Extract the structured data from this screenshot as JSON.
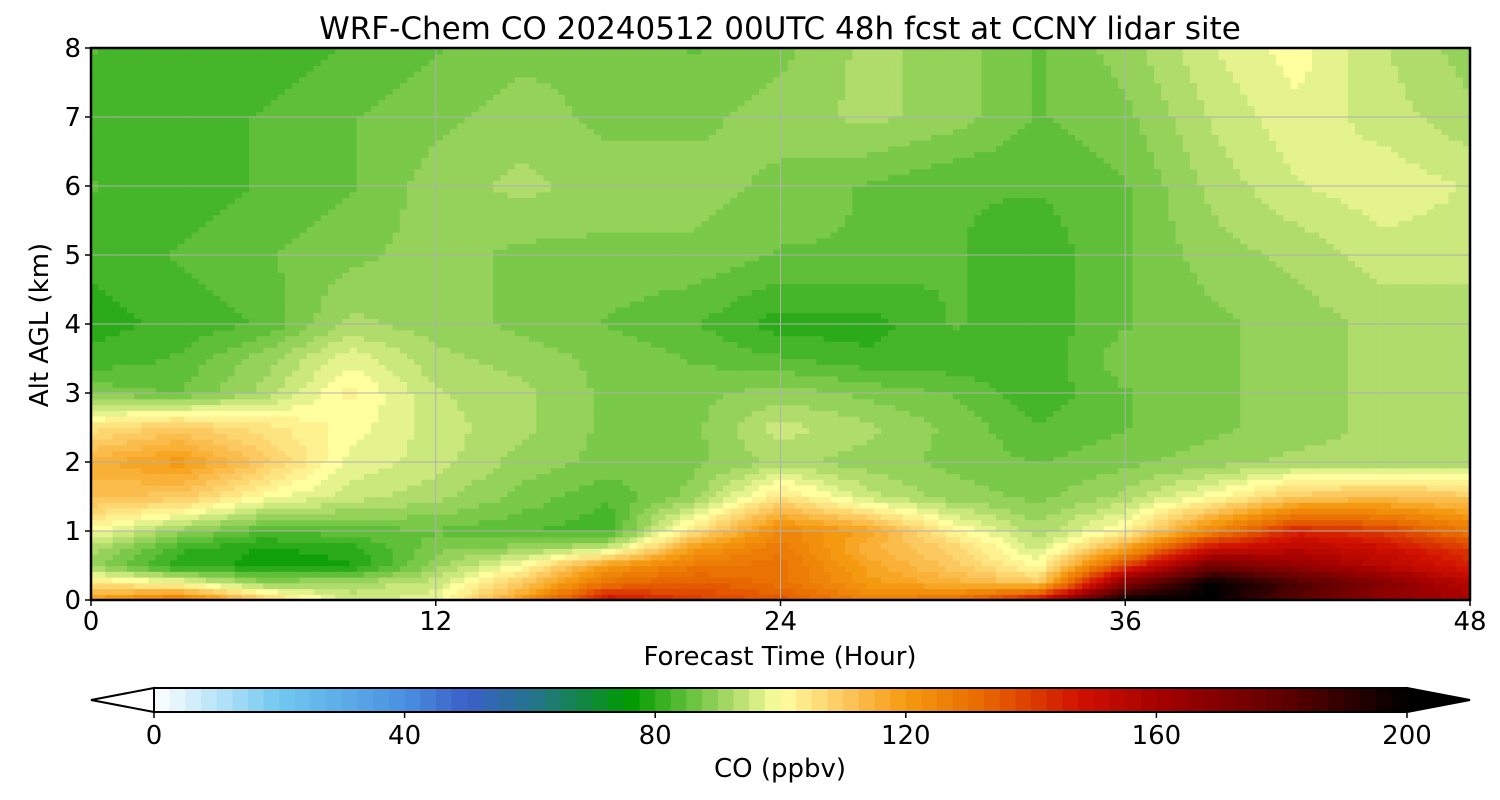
{
  "chart_data": {
    "type": "heatmap",
    "title": "WRF-Chem CO  20240512 00UTC 48h fcst at CCNY lidar site",
    "xlabel": "Forecast Time (Hour)",
    "ylabel": "Alt AGL (km)",
    "xlim": [
      0,
      48
    ],
    "ylim": [
      0,
      8
    ],
    "x_ticks": [
      "0",
      "12",
      "24",
      "36",
      "48"
    ],
    "y_ticks": [
      "0",
      "1",
      "2",
      "3",
      "4",
      "5",
      "6",
      "7",
      "8"
    ],
    "grid": true,
    "grid_color": "#b0b0b0",
    "z_hours": [
      0,
      3,
      6,
      9,
      12,
      15,
      18,
      21,
      24,
      27,
      30,
      33,
      36,
      39,
      42,
      45,
      48
    ],
    "z_altitudes_km": [
      0,
      0.25,
      0.5,
      0.75,
      1,
      1.5,
      2,
      2.5,
      3,
      3.5,
      4,
      5,
      6,
      7,
      8
    ],
    "z_values": [
      [
        120,
        130,
        110,
        95,
        98,
        120,
        150,
        140,
        135,
        125,
        130,
        150,
        200,
        200,
        180,
        165,
        160
      ],
      [
        105,
        100,
        90,
        92,
        95,
        110,
        130,
        135,
        130,
        120,
        115,
        110,
        170,
        200,
        185,
        170,
        155
      ],
      [
        90,
        80,
        78,
        78,
        90,
        100,
        120,
        128,
        130,
        118,
        110,
        100,
        140,
        175,
        165,
        155,
        145
      ],
      [
        92,
        82,
        78,
        80,
        88,
        90,
        95,
        120,
        128,
        115,
        108,
        95,
        118,
        150,
        155,
        150,
        140
      ],
      [
        100,
        90,
        84,
        85,
        86,
        84,
        82,
        105,
        125,
        118,
        102,
        92,
        102,
        125,
        145,
        140,
        128
      ],
      [
        112,
        110,
        100,
        95,
        92,
        88,
        84,
        90,
        105,
        95,
        90,
        88,
        92,
        100,
        110,
        112,
        110
      ],
      [
        115,
        120,
        110,
        98,
        95,
        90,
        88,
        88,
        92,
        90,
        88,
        86,
        88,
        90,
        92,
        92,
        92
      ],
      [
        105,
        110,
        105,
        100,
        95,
        92,
        88,
        88,
        95,
        92,
        88,
        84,
        86,
        88,
        90,
        92,
        92
      ],
      [
        88,
        86,
        92,
        102,
        94,
        92,
        88,
        88,
        90,
        88,
        86,
        82,
        86,
        88,
        90,
        92,
        92
      ],
      [
        82,
        84,
        90,
        98,
        92,
        90,
        88,
        86,
        84,
        82,
        82,
        82,
        88,
        88,
        90,
        92,
        92
      ],
      [
        80,
        82,
        84,
        92,
        90,
        88,
        86,
        84,
        80,
        80,
        84,
        82,
        86,
        88,
        90,
        92,
        92
      ],
      [
        82,
        84,
        86,
        88,
        90,
        88,
        88,
        88,
        86,
        86,
        84,
        82,
        86,
        90,
        92,
        95,
        95
      ],
      [
        84,
        82,
        84,
        86,
        90,
        92,
        90,
        90,
        88,
        86,
        84,
        84,
        86,
        92,
        96,
        98,
        96
      ],
      [
        82,
        82,
        84,
        86,
        88,
        90,
        88,
        88,
        90,
        92,
        90,
        86,
        88,
        94,
        98,
        95,
        92
      ],
      [
        84,
        82,
        82,
        84,
        86,
        88,
        88,
        86,
        88,
        92,
        90,
        86,
        90,
        96,
        100,
        94,
        90
      ]
    ],
    "colorbar": {
      "label": "CO  (ppbv)",
      "ticks": [
        "0",
        "40",
        "80",
        "120",
        "160",
        "200"
      ],
      "tick_values": [
        0,
        40,
        80,
        120,
        160,
        200
      ],
      "range": [
        0,
        200
      ],
      "extend": "both",
      "color_stops": [
        [
          0,
          "#ffffff"
        ],
        [
          20,
          "#70c8f0"
        ],
        [
          40,
          "#4a90e0"
        ],
        [
          50,
          "#3a5fc8"
        ],
        [
          62,
          "#207880"
        ],
        [
          76,
          "#009a00"
        ],
        [
          84,
          "#55bb33"
        ],
        [
          92,
          "#aada66"
        ],
        [
          100,
          "#ffffa0"
        ],
        [
          110,
          "#fcc860"
        ],
        [
          120,
          "#f59a10"
        ],
        [
          132,
          "#e86a00"
        ],
        [
          148,
          "#d01000"
        ],
        [
          162,
          "#a00000"
        ],
        [
          180,
          "#600000"
        ],
        [
          200,
          "#000000"
        ]
      ]
    }
  }
}
